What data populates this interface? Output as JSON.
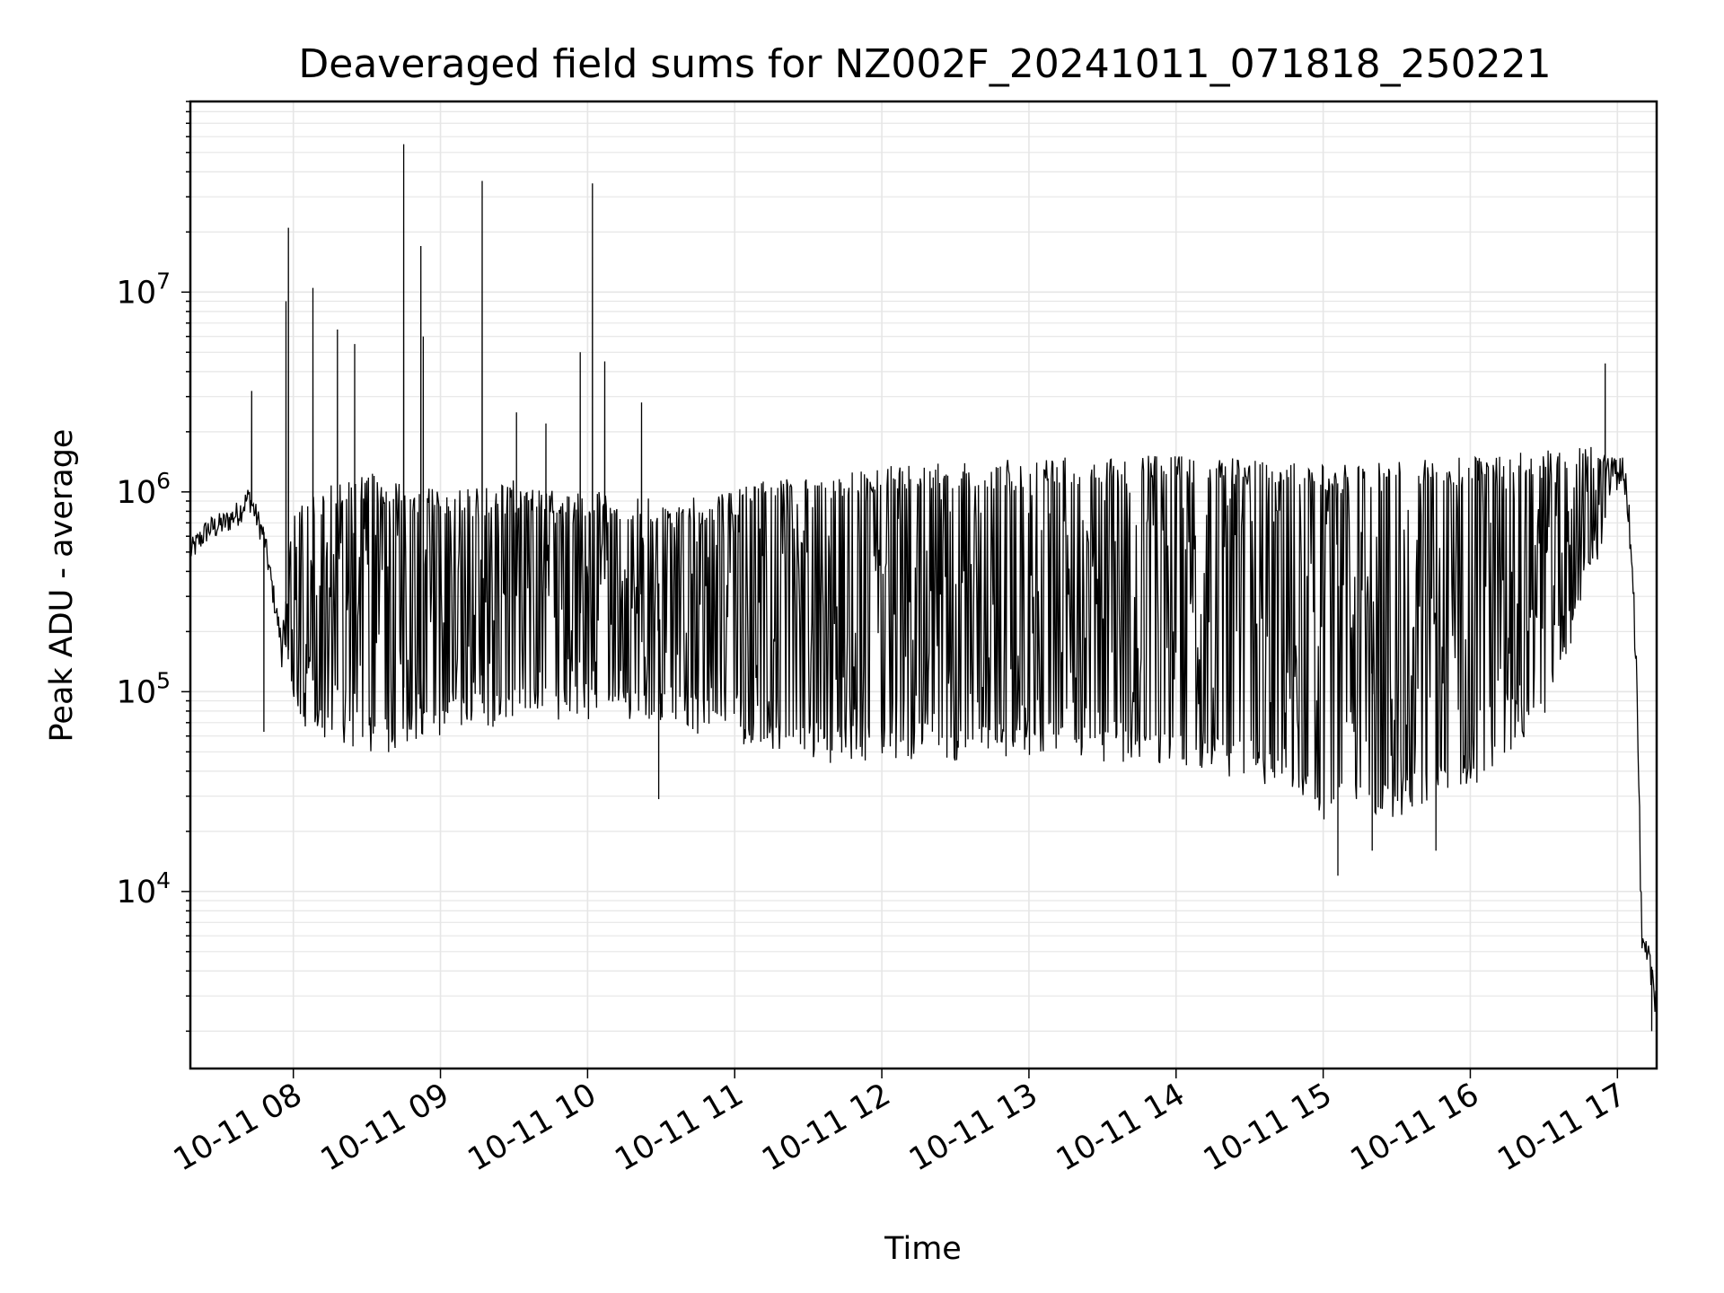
{
  "chart_data": {
    "type": "line",
    "title": "Deaveraged field sums for NZ002F_20241011_071818_250221",
    "xlabel": "Time",
    "ylabel": "Peak ADU - average",
    "x_scale": "time",
    "y_scale": "log",
    "xlim": [
      "2024-10-11 07:18",
      "2024-10-11 17:16"
    ],
    "ylim": [
      1300,
      90000000
    ],
    "x_ticks": [
      "10-11 08",
      "10-11 09",
      "10-11 10",
      "10-11 11",
      "10-11 12",
      "10-11 13",
      "10-11 14",
      "10-11 15",
      "10-11 16",
      "10-11 17"
    ],
    "y_ticks": [
      {
        "base": "10",
        "exp": "4",
        "value": 10000
      },
      {
        "base": "10",
        "exp": "5",
        "value": 100000
      },
      {
        "base": "10",
        "exp": "6",
        "value": 1000000
      },
      {
        "base": "10",
        "exp": "7",
        "value": 10000000
      }
    ],
    "grid": "on (major and minor)",
    "line_color": "#000000",
    "grid_color": "#e6e6e6",
    "series": [
      {
        "x": [
          "2024-10-11 07:18",
          "2024-10-11 07:25",
          "2024-10-11 07:32",
          "2024-10-11 07:38",
          "2024-10-11 07:42",
          "2024-10-11 07:45",
          "2024-10-11 07:48",
          "2024-10-11 07:52",
          "2024-10-11 07:55",
          "2024-10-11 08:00",
          "2024-10-11 08:05",
          "2024-10-11 08:10",
          "2024-10-11 08:20",
          "2024-10-11 08:30",
          "2024-10-11 08:40",
          "2024-10-11 08:50",
          "2024-10-11 09:00",
          "2024-10-11 09:10",
          "2024-10-11 09:20",
          "2024-10-11 09:30",
          "2024-10-11 09:40",
          "2024-10-11 09:50",
          "2024-10-11 10:00",
          "2024-10-11 10:10",
          "2024-10-11 10:20",
          "2024-10-11 10:30",
          "2024-10-11 10:40",
          "2024-10-11 10:50",
          "2024-10-11 11:00",
          "2024-10-11 11:15",
          "2024-10-11 11:30",
          "2024-10-11 11:45",
          "2024-10-11 12:00",
          "2024-10-11 12:30",
          "2024-10-11 13:00",
          "2024-10-11 13:30",
          "2024-10-11 14:00",
          "2024-10-11 14:30",
          "2024-10-11 15:00",
          "2024-10-11 15:30",
          "2024-10-11 16:00",
          "2024-10-11 16:30",
          "2024-10-11 16:50",
          "2024-10-11 17:00",
          "2024-10-11 17:02",
          "2024-10-11 17:04",
          "2024-10-11 17:06",
          "2024-10-11 17:08",
          "2024-10-11 17:10",
          "2024-10-11 17:12",
          "2024-10-11 17:14",
          "2024-10-11 17:16"
        ],
        "y": [
          500000,
          650000,
          700000,
          800000,
          950000,
          750000,
          600000,
          300000,
          180000,
          150000,
          120000,
          110000,
          100000,
          95000,
          100000,
          110000,
          150000,
          200000,
          250000,
          300000,
          320000,
          350000,
          380000,
          360000,
          330000,
          350000,
          300000,
          280000,
          240000,
          220000,
          190000,
          175000,
          170000,
          180000,
          190000,
          200000,
          210000,
          190000,
          150000,
          140000,
          160000,
          230000,
          500000,
          1100000,
          1200000,
          1000000,
          500000,
          100000,
          5000,
          4500,
          4000,
          3000
        ],
        "envelope_upper": [
          500000,
          650000,
          700000,
          800000,
          950000,
          750000,
          600000,
          300000,
          200000,
          800000,
          900000,
          1000000,
          1100000,
          1200000,
          1100000,
          1000000,
          1000000,
          1000000,
          1000000,
          1100000,
          1100000,
          1000000,
          1000000,
          900000,
          900000,
          900000,
          900000,
          900000,
          1000000,
          1100000,
          1100000,
          1200000,
          1300000,
          1350000,
          1400000,
          1450000,
          1450000,
          1400000,
          1300000,
          1350000,
          1450000,
          1550000,
          1700000,
          1500000,
          1200000,
          1000000,
          500000,
          100000,
          7000,
          6000,
          5000,
          4000
        ],
        "envelope_lower": [
          500000,
          650000,
          700000,
          800000,
          950000,
          750000,
          600000,
          300000,
          150000,
          100000,
          70000,
          60000,
          60000,
          55000,
          55000,
          60000,
          65000,
          70000,
          70000,
          75000,
          80000,
          75000,
          80000,
          80000,
          80000,
          80000,
          70000,
          65000,
          60000,
          55000,
          50000,
          48000,
          50000,
          50000,
          48000,
          48000,
          45000,
          40000,
          25000,
          25000,
          35000,
          80000,
          400000,
          1000000,
          1100000,
          900000,
          400000,
          80000,
          3000,
          2500,
          2200,
          2000
        ],
        "spikes": [
          {
            "x": "2024-10-11 07:43",
            "y": 3200000
          },
          {
            "x": "2024-10-11 07:57",
            "y": 9000000
          },
          {
            "x": "2024-10-11 07:58",
            "y": 21000000
          },
          {
            "x": "2024-10-11 08:08",
            "y": 10500000
          },
          {
            "x": "2024-10-11 08:18",
            "y": 6500000
          },
          {
            "x": "2024-10-11 08:25",
            "y": 5500000
          },
          {
            "x": "2024-10-11 08:45",
            "y": 55000000
          },
          {
            "x": "2024-10-11 08:52",
            "y": 17000000
          },
          {
            "x": "2024-10-11 08:53",
            "y": 6000000
          },
          {
            "x": "2024-10-11 09:17",
            "y": 36000000
          },
          {
            "x": "2024-10-11 09:31",
            "y": 2500000
          },
          {
            "x": "2024-10-11 09:43",
            "y": 2200000
          },
          {
            "x": "2024-10-11 09:57",
            "y": 5000000
          },
          {
            "x": "2024-10-11 10:02",
            "y": 35000000
          },
          {
            "x": "2024-10-11 10:07",
            "y": 4500000
          },
          {
            "x": "2024-10-11 10:22",
            "y": 2800000
          },
          {
            "x": "2024-10-11 16:55",
            "y": 4400000
          }
        ],
        "dips": [
          {
            "x": "2024-10-11 07:48",
            "y": 63000
          },
          {
            "x": "2024-10-11 10:29",
            "y": 29000
          },
          {
            "x": "2024-10-11 15:06",
            "y": 12000
          },
          {
            "x": "2024-10-11 15:20",
            "y": 16000
          },
          {
            "x": "2024-10-11 15:46",
            "y": 16000
          },
          {
            "x": "2024-10-11 17:14",
            "y": 2000
          }
        ]
      }
    ]
  }
}
